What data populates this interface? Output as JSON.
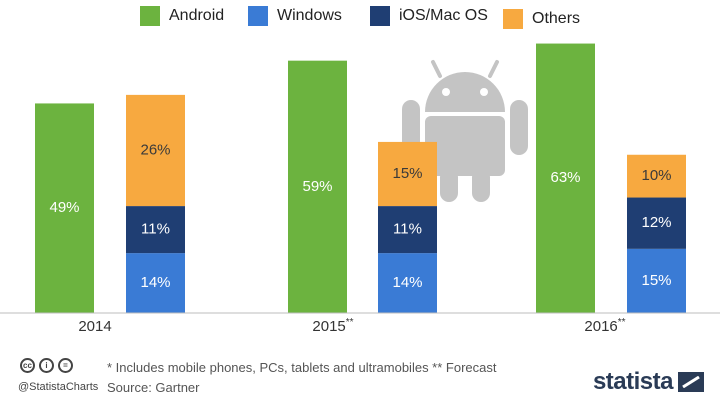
{
  "chart_data": {
    "type": "bar",
    "stacked_groups": true,
    "categories": [
      "2014",
      "2015**",
      "2016**"
    ],
    "series": [
      {
        "name": "Android",
        "values": [
          49,
          59,
          63
        ],
        "color": "#6cb33f",
        "stack": "android",
        "labels": [
          "49%",
          "59%",
          "63%"
        ]
      },
      {
        "name": "Windows",
        "values": [
          14,
          14,
          15
        ],
        "color": "#3a7bd5",
        "stack": "other",
        "labels": [
          "14%",
          "14%",
          "15%"
        ]
      },
      {
        "name": "iOS/Mac OS",
        "values": [
          11,
          11,
          12
        ],
        "color": "#1f3e73",
        "stack": "other",
        "labels": [
          "11%",
          "11%",
          "12%"
        ]
      },
      {
        "name": "Others",
        "values": [
          26,
          15,
          10
        ],
        "color": "#f7a940",
        "stack": "other",
        "labels": [
          "26%",
          "15%",
          "10%"
        ]
      }
    ],
    "ylim": [
      0,
      65
    ],
    "grid": false,
    "legend_position": "top",
    "background_icon": "android-robot-icon"
  },
  "legend": [
    {
      "label": "Android",
      "color": "#6cb33f"
    },
    {
      "label": "Windows",
      "color": "#3a7bd5"
    },
    {
      "label": "iOS/Mac OS",
      "color": "#1f3e73"
    },
    {
      "label": "Others",
      "color": "#f7a940"
    }
  ],
  "footer": {
    "note": "* Includes mobile phones, PCs, tablets and ultramobiles  ** Forecast",
    "source": "Source: Gartner",
    "handle": "@StatistaCharts",
    "brand": "statista",
    "license_icons": [
      "cc-icon",
      "by-icon",
      "nd-icon"
    ]
  }
}
